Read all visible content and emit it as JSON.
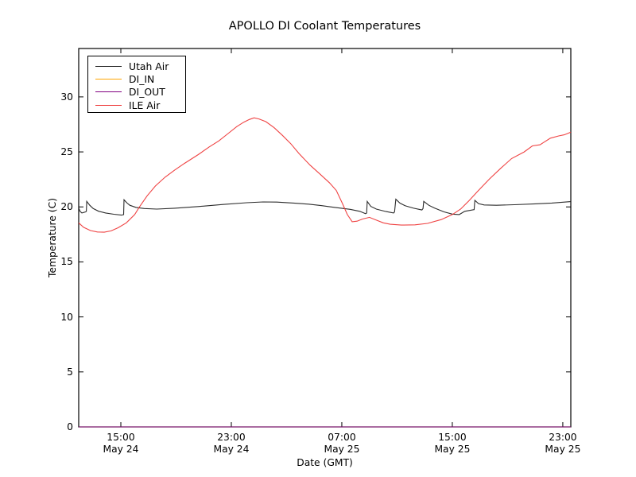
{
  "chart_data": {
    "type": "line",
    "title": "APOLLO DI Coolant Temperatures",
    "xlabel": "Date (GMT)",
    "ylabel": "Temperature (C)",
    "x_unit": "hours since May 24 00:00 GMT",
    "xlim": [
      11.95,
      47.58
    ],
    "ylim": [
      0,
      34.4
    ],
    "grid": false,
    "legend_position": "upper left",
    "frame_color": "#000000",
    "xticks": [
      {
        "hour": 15,
        "time": "15:00",
        "date": "May 24"
      },
      {
        "hour": 23,
        "time": "23:00",
        "date": "May 24"
      },
      {
        "hour": 31,
        "time": "07:00",
        "date": "May 25"
      },
      {
        "hour": 39,
        "time": "15:00",
        "date": "May 25"
      },
      {
        "hour": 47,
        "time": "23:00",
        "date": "May 25"
      }
    ],
    "yticks": [
      0,
      5,
      10,
      15,
      20,
      25,
      30
    ],
    "series": [
      {
        "name": "Utah Air",
        "color": "#1a1a1a",
        "points": [
          [
            11.95,
            19.9
          ],
          [
            12.05,
            19.6
          ],
          [
            12.18,
            19.45
          ],
          [
            12.45,
            19.55
          ],
          [
            12.5,
            19.6
          ],
          [
            12.53,
            20.5
          ],
          [
            12.75,
            20.15
          ],
          [
            13.0,
            19.85
          ],
          [
            13.4,
            19.6
          ],
          [
            13.9,
            19.45
          ],
          [
            14.5,
            19.33
          ],
          [
            15.05,
            19.25
          ],
          [
            15.2,
            19.3
          ],
          [
            15.23,
            20.65
          ],
          [
            15.45,
            20.35
          ],
          [
            15.65,
            20.15
          ],
          [
            16.1,
            19.95
          ],
          [
            16.7,
            19.85
          ],
          [
            17.6,
            19.8
          ],
          [
            18.9,
            19.88
          ],
          [
            20.6,
            20.03
          ],
          [
            22.4,
            20.22
          ],
          [
            24.1,
            20.38
          ],
          [
            25.3,
            20.45
          ],
          [
            26.3,
            20.44
          ],
          [
            27.5,
            20.35
          ],
          [
            28.6,
            20.25
          ],
          [
            29.5,
            20.12
          ],
          [
            30.5,
            19.95
          ],
          [
            31.6,
            19.78
          ],
          [
            32.3,
            19.6
          ],
          [
            32.72,
            19.38
          ],
          [
            32.8,
            19.45
          ],
          [
            32.84,
            20.5
          ],
          [
            33.1,
            20.05
          ],
          [
            33.5,
            19.8
          ],
          [
            34.2,
            19.58
          ],
          [
            34.75,
            19.45
          ],
          [
            34.82,
            19.55
          ],
          [
            34.91,
            20.7
          ],
          [
            35.2,
            20.35
          ],
          [
            35.6,
            20.1
          ],
          [
            36.2,
            19.88
          ],
          [
            36.8,
            19.72
          ],
          [
            36.88,
            19.85
          ],
          [
            36.93,
            20.5
          ],
          [
            37.3,
            20.15
          ],
          [
            37.7,
            19.9
          ],
          [
            38.4,
            19.55
          ],
          [
            39.0,
            19.35
          ],
          [
            39.5,
            19.3
          ],
          [
            39.9,
            19.6
          ],
          [
            40.58,
            19.75
          ],
          [
            40.63,
            20.6
          ],
          [
            40.9,
            20.3
          ],
          [
            41.3,
            20.18
          ],
          [
            42.2,
            20.15
          ],
          [
            43.5,
            20.2
          ],
          [
            45.0,
            20.28
          ],
          [
            46.2,
            20.35
          ],
          [
            47.58,
            20.48
          ]
        ]
      },
      {
        "name": "DI_IN",
        "color": "#ffa500",
        "points": [
          [
            11.95,
            0
          ],
          [
            47.58,
            0
          ]
        ]
      },
      {
        "name": "DI_OUT",
        "color": "#800080",
        "points": [
          [
            11.95,
            0
          ],
          [
            47.58,
            0
          ]
        ]
      },
      {
        "name": "ILE Air",
        "color": "#ee3333",
        "points": [
          [
            11.95,
            18.55
          ],
          [
            12.3,
            18.15
          ],
          [
            12.8,
            17.85
          ],
          [
            13.3,
            17.72
          ],
          [
            13.8,
            17.7
          ],
          [
            14.3,
            17.82
          ],
          [
            14.8,
            18.1
          ],
          [
            15.4,
            18.55
          ],
          [
            16.0,
            19.3
          ],
          [
            16.35,
            20.0
          ],
          [
            16.9,
            21.0
          ],
          [
            17.5,
            21.9
          ],
          [
            18.2,
            22.7
          ],
          [
            18.9,
            23.35
          ],
          [
            19.6,
            23.95
          ],
          [
            20.6,
            24.75
          ],
          [
            21.4,
            25.45
          ],
          [
            22.1,
            26.0
          ],
          [
            22.8,
            26.7
          ],
          [
            23.4,
            27.3
          ],
          [
            23.9,
            27.7
          ],
          [
            24.3,
            27.95
          ],
          [
            24.65,
            28.1
          ],
          [
            25.0,
            28.0
          ],
          [
            25.5,
            27.75
          ],
          [
            26.1,
            27.2
          ],
          [
            26.7,
            26.5
          ],
          [
            27.3,
            25.75
          ],
          [
            27.9,
            24.85
          ],
          [
            28.7,
            23.8
          ],
          [
            29.4,
            23.0
          ],
          [
            30.1,
            22.2
          ],
          [
            30.6,
            21.5
          ],
          [
            31.05,
            20.3
          ],
          [
            31.4,
            19.3
          ],
          [
            31.75,
            18.65
          ],
          [
            32.1,
            18.7
          ],
          [
            32.5,
            18.9
          ],
          [
            33.0,
            19.05
          ],
          [
            33.5,
            18.8
          ],
          [
            34.0,
            18.55
          ],
          [
            34.5,
            18.42
          ],
          [
            35.3,
            18.35
          ],
          [
            36.3,
            18.37
          ],
          [
            37.2,
            18.5
          ],
          [
            38.2,
            18.85
          ],
          [
            39.0,
            19.3
          ],
          [
            39.6,
            19.8
          ],
          [
            40.2,
            20.55
          ],
          [
            40.9,
            21.5
          ],
          [
            41.7,
            22.55
          ],
          [
            42.5,
            23.5
          ],
          [
            43.3,
            24.4
          ],
          [
            44.2,
            25.0
          ],
          [
            44.8,
            25.55
          ],
          [
            45.35,
            25.65
          ],
          [
            45.6,
            25.85
          ],
          [
            46.1,
            26.25
          ],
          [
            46.7,
            26.45
          ],
          [
            47.1,
            26.55
          ],
          [
            47.58,
            26.8
          ]
        ]
      }
    ]
  }
}
